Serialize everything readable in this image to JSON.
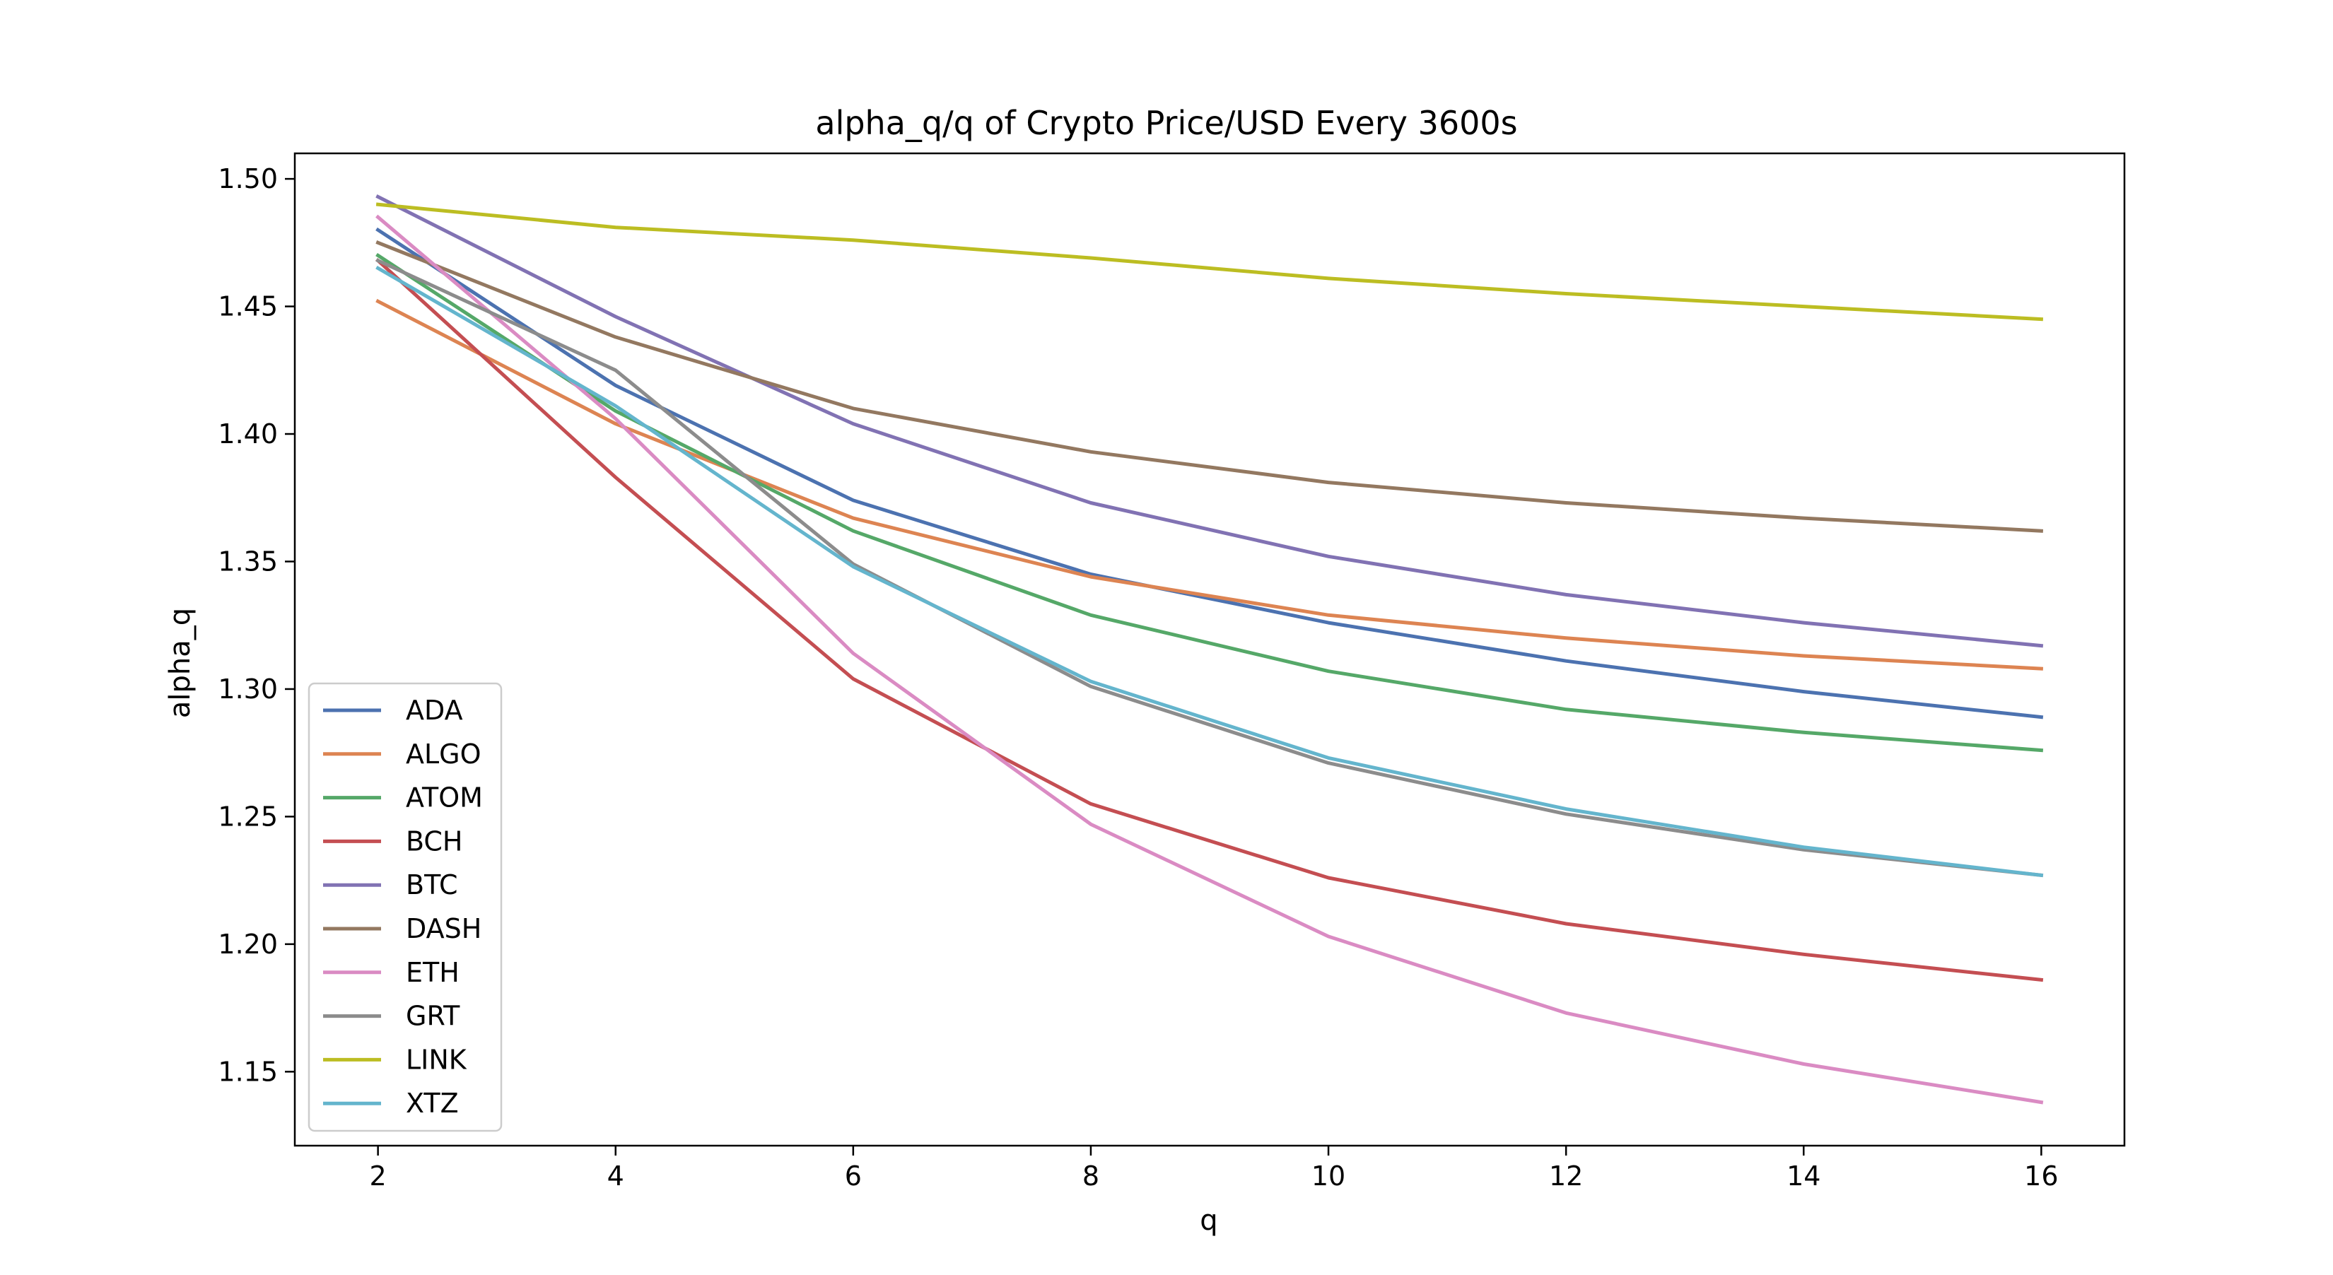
{
  "chart_data": {
    "type": "line",
    "title": "alpha_q/q of Crypto Price/USD Every 3600s",
    "xlabel": "q",
    "ylabel": "alpha_q",
    "x": [
      2,
      4,
      6,
      8,
      10,
      12,
      14,
      16
    ],
    "xlim": [
      1.3,
      16.7
    ],
    "ylim": [
      1.121,
      1.51
    ],
    "xticks": [
      2,
      4,
      6,
      8,
      10,
      12,
      14,
      16
    ],
    "yticks": [
      1.15,
      1.2,
      1.25,
      1.3,
      1.35,
      1.4,
      1.45,
      1.5
    ],
    "ytick_labels": [
      "1.15",
      "1.20",
      "1.25",
      "1.30",
      "1.35",
      "1.40",
      "1.45",
      "1.50"
    ],
    "grid": false,
    "legend_position": "lower-left",
    "series": [
      {
        "name": "ADA",
        "color": "#4c72b0",
        "values": [
          1.48,
          1.419,
          1.374,
          1.345,
          1.326,
          1.311,
          1.299,
          1.289
        ]
      },
      {
        "name": "ALGO",
        "color": "#dd8452",
        "values": [
          1.452,
          1.404,
          1.367,
          1.344,
          1.329,
          1.32,
          1.313,
          1.308
        ]
      },
      {
        "name": "ATOM",
        "color": "#55a868",
        "values": [
          1.47,
          1.409,
          1.362,
          1.329,
          1.307,
          1.292,
          1.283,
          1.276
        ]
      },
      {
        "name": "BCH",
        "color": "#c44e52",
        "values": [
          1.468,
          1.383,
          1.304,
          1.255,
          1.226,
          1.208,
          1.196,
          1.186
        ]
      },
      {
        "name": "BTC",
        "color": "#8172b3",
        "values": [
          1.493,
          1.446,
          1.404,
          1.373,
          1.352,
          1.337,
          1.326,
          1.317
        ]
      },
      {
        "name": "DASH",
        "color": "#937860",
        "values": [
          1.475,
          1.438,
          1.41,
          1.393,
          1.381,
          1.373,
          1.367,
          1.362
        ]
      },
      {
        "name": "ETH",
        "color": "#da8bc3",
        "values": [
          1.485,
          1.406,
          1.314,
          1.247,
          1.203,
          1.173,
          1.153,
          1.138
        ]
      },
      {
        "name": "GRT",
        "color": "#8c8c8c",
        "values": [
          1.468,
          1.425,
          1.349,
          1.301,
          1.271,
          1.251,
          1.237,
          1.227
        ]
      },
      {
        "name": "LINK",
        "color": "#bcbd22",
        "values": [
          1.49,
          1.481,
          1.476,
          1.469,
          1.461,
          1.455,
          1.45,
          1.445
        ]
      },
      {
        "name": "XTZ",
        "color": "#64b5cd",
        "values": [
          1.465,
          1.411,
          1.348,
          1.303,
          1.273,
          1.253,
          1.238,
          1.227
        ]
      }
    ]
  }
}
